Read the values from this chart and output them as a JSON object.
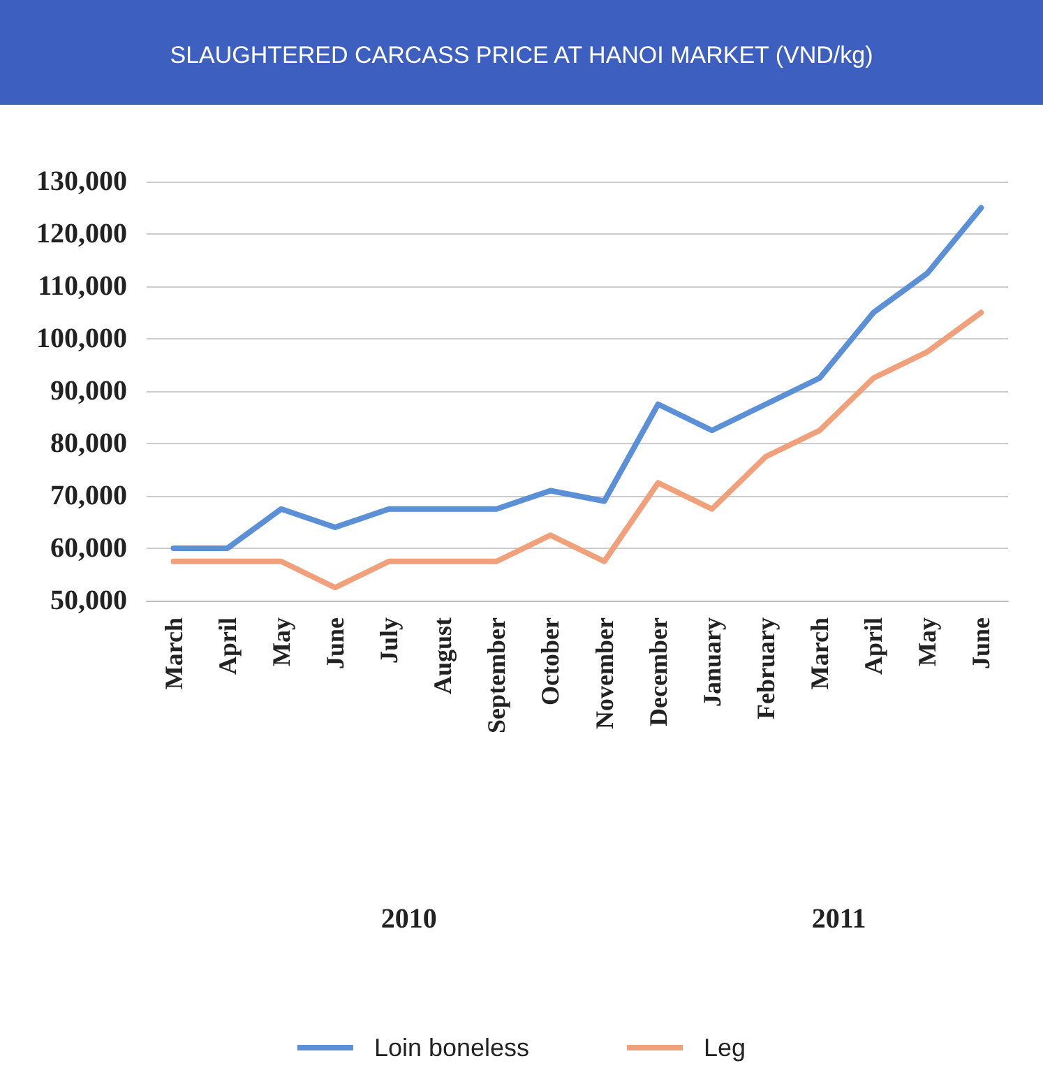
{
  "chart_data": {
    "type": "line",
    "title": "SLAUGHTERED CARCASS PRICE AT HANOI MARKET (VND/kg)",
    "categories": [
      "March",
      "April",
      "May",
      "June",
      "July",
      "August",
      "September",
      "October",
      "November",
      "December",
      "January",
      "February",
      "March",
      "April",
      "May",
      "June"
    ],
    "series": [
      {
        "name": "Loin boneless",
        "color": "#5b8fd6",
        "values": [
          60000,
          60000,
          67500,
          64000,
          67500,
          67500,
          67500,
          71000,
          69000,
          87500,
          82500,
          87500,
          92500,
          105000,
          112500,
          125000
        ]
      },
      {
        "name": "Leg",
        "color": "#f0a07a",
        "values": [
          57500,
          57500,
          57500,
          52500,
          57500,
          57500,
          57500,
          62500,
          57500,
          72500,
          67500,
          77500,
          82500,
          92500,
          97500,
          105000
        ]
      }
    ],
    "ylim": [
      50000,
      130000
    ],
    "yticks": [
      {
        "value": 50000,
        "label": "50,000"
      },
      {
        "value": 60000,
        "label": "60,000"
      },
      {
        "value": 70000,
        "label": "70,000"
      },
      {
        "value": 80000,
        "label": "80,000"
      },
      {
        "value": 90000,
        "label": "90,000"
      },
      {
        "value": 100000,
        "label": "100,000"
      },
      {
        "value": 110000,
        "label": "110,000"
      },
      {
        "value": 120000,
        "label": "120,000"
      },
      {
        "value": 130000,
        "label": "130,000"
      }
    ],
    "annotations": [
      "2010",
      "2011"
    ],
    "grid": "y",
    "legend": "bottom",
    "marker": "none",
    "line_style": "solid"
  }
}
